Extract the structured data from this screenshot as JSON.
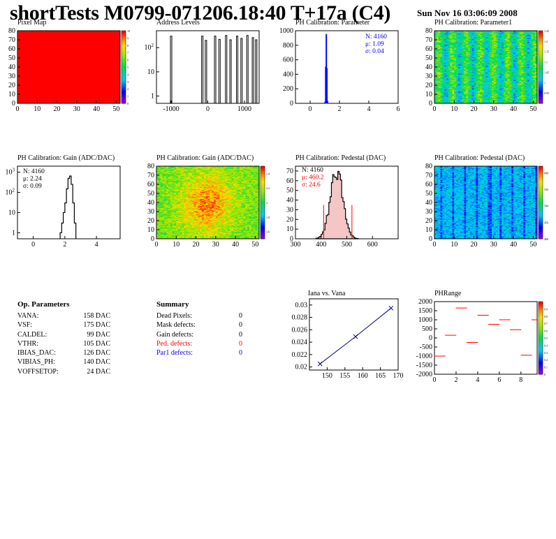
{
  "title": "shortTests M0799-071206.18:40 T+17a (C4)",
  "date": "Sun Nov 16 03:06:09 2008",
  "panels": {
    "pixel_map": {
      "title": "Pixel Map"
    },
    "address_levels": {
      "title": "Address Levels"
    },
    "ph_param": {
      "title": "PH Calibration: Parameter",
      "stats": [
        "N: 4160",
        "μ: 1.09",
        "σ: 0.04"
      ]
    },
    "ph_param1": {
      "title": "PH Calibration: Parameter1"
    },
    "gain_hist": {
      "title": "PH Calibration: Gain (ADC/DAC)",
      "stats": [
        "N: 4160",
        "μ: 2.24",
        "σ: 0.09"
      ]
    },
    "gain_map": {
      "title": "PH Calibration: Gain (ADC/DAC)"
    },
    "ped_hist": {
      "title": "PH Calibration: Pedestal (DAC)",
      "stats": [
        "N: 4160",
        "μ: 460.2",
        "σ: 24.6"
      ]
    },
    "ped_map": {
      "title": "PH Calibration: Pedestal (DAC)"
    },
    "iana": {
      "title": "Iana vs. Vana"
    },
    "phrange": {
      "title": "PHRange"
    }
  },
  "op_params": {
    "header": "Op. Parameters",
    "rows": [
      {
        "name": "VANA:",
        "value": "158 DAC"
      },
      {
        "name": "VSF:",
        "value": "175 DAC"
      },
      {
        "name": "CALDEL:",
        "value": "99 DAC"
      },
      {
        "name": "VTHR:",
        "value": "105 DAC"
      },
      {
        "name": "IBIAS_DAC:",
        "value": "126 DAC"
      },
      {
        "name": "VIBIAS_PH:",
        "value": "140 DAC"
      },
      {
        "name": "VOFFSETOP:",
        "value": "24 DAC"
      }
    ]
  },
  "summary": {
    "header": "Summary",
    "rows": [
      {
        "name": "Dead Pixels:",
        "value": "0",
        "color": "#000000"
      },
      {
        "name": "Mask defects:",
        "value": "0",
        "color": "#000000"
      },
      {
        "name": "Gain defects:",
        "value": "0",
        "color": "#000000"
      },
      {
        "name": "Ped. defects:",
        "value": "0",
        "color": "#ff0000"
      },
      {
        "name": "Par1 defects:",
        "value": "0",
        "color": "#0000ff"
      }
    ]
  },
  "colors": {
    "red": "#ff0000",
    "blue": "#0000ff",
    "fill_ped": "#f4c6c6"
  },
  "chart_data": [
    {
      "id": "pixel_map",
      "type": "heatmap",
      "title": "Pixel Map",
      "xlim": [
        0,
        52
      ],
      "ylim": [
        0,
        80
      ],
      "xticks": [
        0,
        10,
        20,
        30,
        40,
        50
      ],
      "yticks": [
        0,
        10,
        20,
        30,
        40,
        50,
        60,
        70,
        80
      ],
      "fill": "uniform",
      "value": 10,
      "zlim": [
        0,
        10
      ],
      "zticks": [
        0,
        1,
        2,
        3,
        4,
        5,
        6,
        7,
        8,
        9,
        10
      ]
    },
    {
      "id": "address_levels",
      "type": "bar",
      "title": "Address Levels",
      "log_y": true,
      "xlim": [
        -1400,
        1400
      ],
      "ylim": [
        0.5,
        500
      ],
      "xticks": [
        -1000,
        0,
        1000
      ],
      "yticks": [
        1,
        10,
        100
      ],
      "peaks": [
        [
          -1000,
          300
        ],
        [
          -150,
          300
        ],
        [
          -50,
          200
        ],
        [
          200,
          300
        ],
        [
          320,
          220
        ],
        [
          500,
          320
        ],
        [
          620,
          210
        ],
        [
          800,
          300
        ],
        [
          920,
          240
        ],
        [
          1080,
          320
        ],
        [
          1230,
          260
        ],
        [
          1320,
          210
        ]
      ]
    },
    {
      "id": "ph_param",
      "type": "bar",
      "title": "PH Calibration: Parameter",
      "xlim": [
        -1,
        6
      ],
      "ylim": [
        0,
        1000
      ],
      "xticks": [
        0,
        2,
        4,
        6
      ],
      "yticks": [
        0,
        200,
        400,
        600,
        800,
        1000
      ],
      "bins": [
        [
          1.0,
          20
        ],
        [
          1.04,
          500
        ],
        [
          1.08,
          950
        ],
        [
          1.12,
          480
        ],
        [
          1.16,
          30
        ]
      ],
      "stats": {
        "N": 4160,
        "mean": 1.09,
        "sigma": 0.04
      }
    },
    {
      "id": "ph_param1",
      "type": "heatmap",
      "title": "PH Calibration: Parameter1",
      "xlim": [
        0,
        52
      ],
      "ylim": [
        0,
        80
      ],
      "xticks": [
        0,
        10,
        20,
        30,
        40,
        50
      ],
      "yticks": [
        0,
        10,
        20,
        30,
        40,
        50,
        60,
        70,
        80
      ],
      "zlim": [
        0.9,
        1.25
      ],
      "zticks": [
        0.95,
        1,
        1.05,
        1.1,
        1.15,
        1.2,
        1.25
      ]
    },
    {
      "id": "gain_hist",
      "type": "bar",
      "title": "PH Calibration: Gain (ADC/DAC)",
      "log_y": true,
      "xlim": [
        -1,
        5.5
      ],
      "ylim": [
        0.5,
        2000
      ],
      "xticks": [
        0,
        2,
        4
      ],
      "yticks": [
        1,
        10,
        100,
        1000
      ],
      "bins": [
        [
          1.7,
          1
        ],
        [
          1.8,
          3
        ],
        [
          1.9,
          10
        ],
        [
          2.0,
          30
        ],
        [
          2.1,
          150
        ],
        [
          2.2,
          500
        ],
        [
          2.3,
          650
        ],
        [
          2.4,
          250
        ],
        [
          2.5,
          30
        ],
        [
          2.6,
          3
        ]
      ],
      "stats": {
        "N": 4160,
        "mean": 2.24,
        "sigma": 0.09
      }
    },
    {
      "id": "gain_map",
      "type": "heatmap",
      "title": "PH Calibration: Gain (ADC/DAC)",
      "xlim": [
        0,
        52
      ],
      "ylim": [
        0,
        80
      ],
      "xticks": [
        0,
        10,
        20,
        30,
        40,
        50
      ],
      "yticks": [
        0,
        10,
        20,
        30,
        40,
        50,
        60,
        70,
        80
      ],
      "zlim": [
        1.5,
        2.5
      ],
      "zticks": [
        1.6,
        1.8,
        2,
        2.2,
        2.4
      ]
    },
    {
      "id": "ped_hist",
      "type": "bar",
      "title": "PH Calibration: Pedestal (DAC)",
      "xlim": [
        300,
        700
      ],
      "ylim": [
        0,
        75
      ],
      "xticks": [
        300,
        400,
        500,
        600
      ],
      "yticks": [
        0,
        10,
        20,
        30,
        40,
        50,
        60,
        70
      ],
      "gauss": {
        "mean": 460.2,
        "sigma": 24.6,
        "peak": 68
      },
      "cut_lines": [
        410,
        520
      ],
      "cut_height": 35,
      "stats": {
        "N": 4160,
        "mean": 460.2,
        "sigma": 24.6
      }
    },
    {
      "id": "ped_map",
      "type": "heatmap",
      "title": "PH Calibration: Pedestal (DAC)",
      "xlim": [
        0,
        52
      ],
      "ylim": [
        0,
        80
      ],
      "xticks": [
        0,
        10,
        20,
        30,
        40,
        50
      ],
      "yticks": [
        0,
        10,
        20,
        30,
        40,
        50,
        60,
        70,
        80
      ],
      "zlim": [
        400,
        620
      ],
      "zticks": [
        400,
        450,
        500,
        550,
        600
      ]
    },
    {
      "id": "iana",
      "type": "line",
      "title": "Iana vs. Vana",
      "xlim": [
        145,
        170
      ],
      "ylim": [
        0.0195,
        0.031
      ],
      "xticks": [
        150,
        155,
        160,
        165,
        170
      ],
      "yticks": [
        0.02,
        0.022,
        0.024,
        0.026,
        0.028,
        0.03
      ],
      "x": [
        148,
        158,
        168
      ],
      "y": [
        0.0205,
        0.0249,
        0.0295
      ]
    },
    {
      "id": "phrange",
      "type": "scatter",
      "title": "PHRange",
      "xlim": [
        0,
        9.5
      ],
      "ylim": [
        -2000,
        2000
      ],
      "xticks": [
        0,
        2,
        4,
        6,
        8
      ],
      "yticks": [
        -2000,
        -1500,
        -1000,
        -500,
        0,
        500,
        1000,
        1500,
        2000
      ],
      "x": [
        0.5,
        1.5,
        2.5,
        3.5,
        4.5,
        5.5,
        6.5,
        7.5,
        8.5,
        9.5
      ],
      "y": [
        -1000,
        150,
        1650,
        -250,
        1250,
        750,
        1000,
        450,
        -950,
        1000
      ],
      "zlim": [
        0,
        1
      ],
      "zticks": [
        0,
        0.1,
        0.2,
        0.3,
        0.4,
        0.5,
        0.6,
        0.7,
        0.8,
        0.9
      ]
    }
  ]
}
